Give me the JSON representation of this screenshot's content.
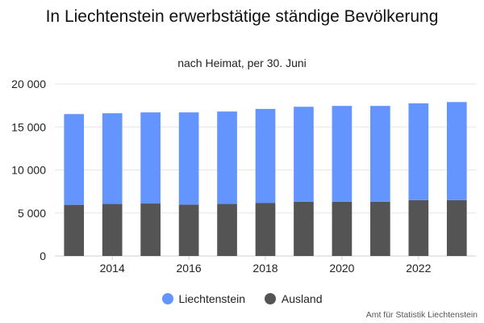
{
  "chart_data": {
    "type": "bar",
    "stacked": true,
    "title": "In Liechtenstein erwerbstätige ständige Bevölkerung",
    "subtitle": "nach Heimat, per 30. Juni",
    "x": [
      2013,
      2014,
      2015,
      2016,
      2017,
      2018,
      2019,
      2020,
      2021,
      2022,
      2023
    ],
    "x_tick_labels": [
      "2014",
      "2016",
      "2018",
      "2020",
      "2022"
    ],
    "y_tick_labels": [
      "0",
      "5 000",
      "10 000",
      "15 000",
      "20 000"
    ],
    "ylim": [
      0,
      20000
    ],
    "grid": true,
    "legend_position": "bottom",
    "series": [
      {
        "name": "Ausland",
        "color": "#545454",
        "values": [
          5950,
          6050,
          6100,
          5980,
          6050,
          6150,
          6300,
          6300,
          6300,
          6500,
          6500
        ]
      },
      {
        "name": "Liechtenstein",
        "color": "#6495ff",
        "values": [
          10550,
          10550,
          10600,
          10720,
          10750,
          10950,
          11050,
          11150,
          11150,
          11250,
          11400
        ]
      }
    ],
    "credit": "Amt für Statistik Liechtenstein"
  }
}
